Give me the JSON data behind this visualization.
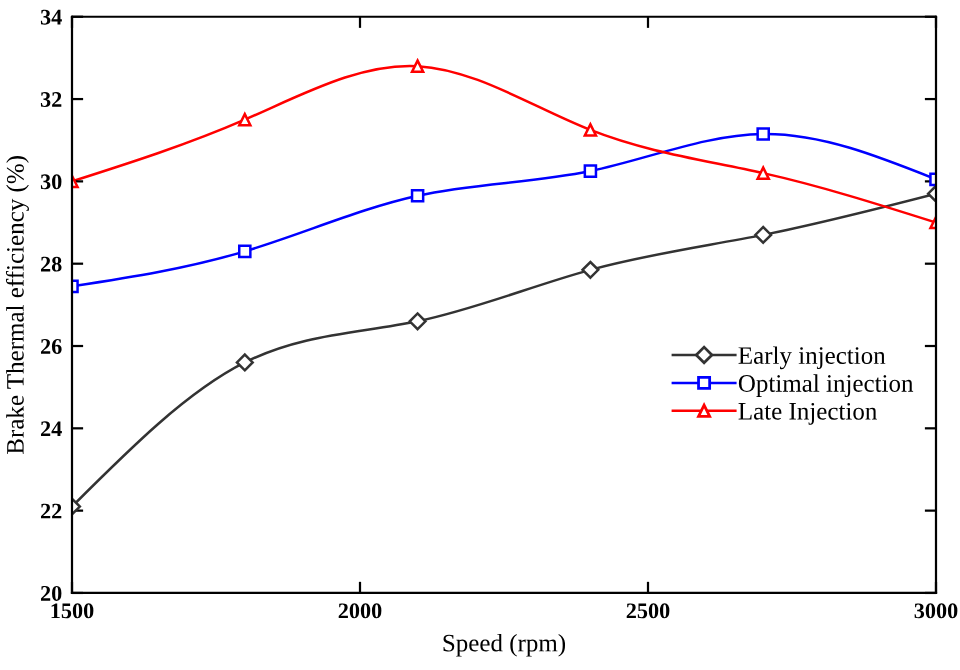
{
  "chart_data": {
    "type": "line",
    "xlabel": "Speed (rpm)",
    "ylabel": "Brake Thermal efficiency (%)",
    "x": [
      1500,
      1800,
      2100,
      2400,
      2700,
      3000
    ],
    "series": [
      {
        "name": "Early injection",
        "color": "#333333",
        "marker": "diamond",
        "values": [
          22.1,
          25.6,
          26.6,
          27.85,
          28.7,
          29.7
        ]
      },
      {
        "name": "Optimal injection",
        "color": "#0000ff",
        "marker": "square",
        "values": [
          27.45,
          28.3,
          29.65,
          30.25,
          31.15,
          30.05
        ]
      },
      {
        "name": "Late Injection",
        "color": "#ff0000",
        "marker": "triangle",
        "values": [
          30.0,
          31.5,
          32.8,
          31.25,
          30.2,
          29.0
        ]
      }
    ],
    "xlim": [
      1500,
      3000
    ],
    "xticks": [
      1500,
      2000,
      2500,
      3000
    ],
    "ylim": [
      20,
      34
    ],
    "yticks": [
      20,
      22,
      24,
      26,
      28,
      30,
      32,
      34
    ],
    "grid": false,
    "legend": "right",
    "line_style": "solid"
  }
}
